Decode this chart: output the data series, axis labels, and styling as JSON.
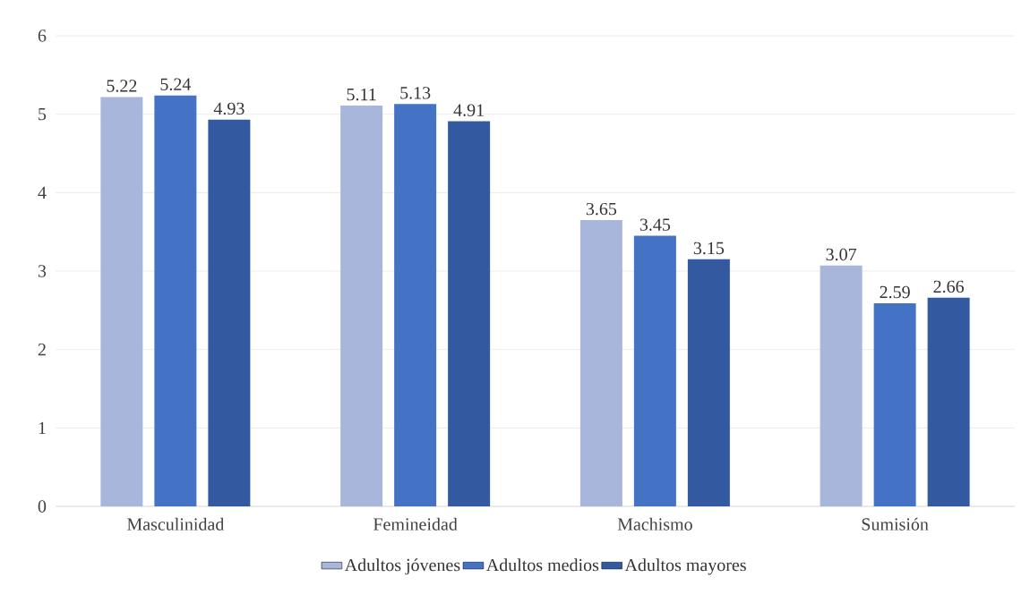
{
  "chart_data": {
    "type": "bar",
    "categories": [
      "Masculinidad",
      "Femineidad",
      "Machismo",
      "Sumisión"
    ],
    "series": [
      {
        "name": "Adultos jóvenes",
        "color": "#a9b6db",
        "values": [
          5.22,
          5.11,
          3.65,
          3.07
        ]
      },
      {
        "name": "Adultos medios",
        "color": "#4472c4",
        "values": [
          5.24,
          5.13,
          3.45,
          2.59
        ]
      },
      {
        "name": "Adultos mayores",
        "color": "#335aa1",
        "values": [
          4.93,
          4.91,
          3.15,
          2.66
        ]
      }
    ],
    "ylim": [
      0,
      6
    ],
    "yticks": [
      0,
      1,
      2,
      3,
      4,
      5,
      6
    ],
    "grid": "y",
    "data_labels": true,
    "legend": "bottom"
  }
}
